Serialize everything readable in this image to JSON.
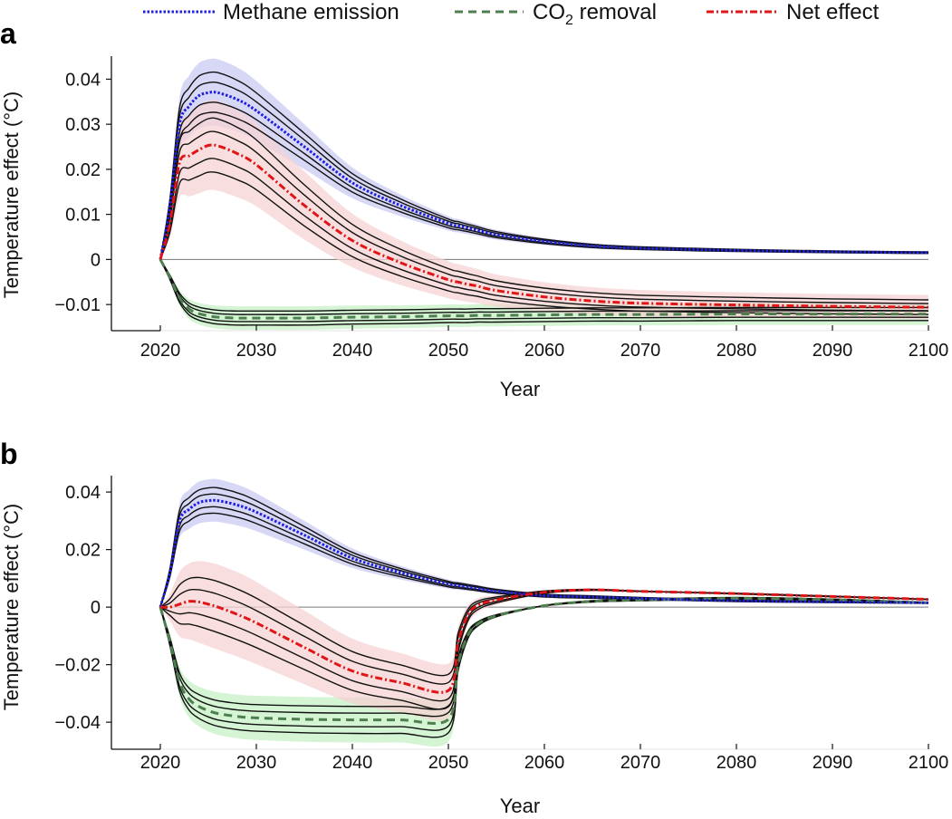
{
  "chart_data": {
    "type": "line",
    "legend": {
      "placement": "top",
      "entries": [
        {
          "key": "methane",
          "label": "Methane emission",
          "color": "#1f1fe0",
          "style": "dotted"
        },
        {
          "key": "co2",
          "label_main": "CO",
          "label_sub": "2",
          "label_rest": " removal",
          "label": "CO2 removal",
          "color": "#4f7f4f",
          "style": "dashed"
        },
        {
          "key": "net",
          "label": "Net effect",
          "color": "#e01515",
          "style": "dash-dot"
        }
      ]
    },
    "band_colors": {
      "methane": "#c9c9f3",
      "co2": "#c6f0c6",
      "net": "#f6d3d3"
    },
    "ensemble_scale": {
      "lines": [
        0.88,
        0.94,
        1.06,
        1.12
      ],
      "band": [
        0.8,
        1.2
      ]
    },
    "x": [
      2020,
      2021,
      2022,
      2023,
      2024,
      2025,
      2026,
      2028,
      2030,
      2035,
      2040,
      2045,
      2050,
      2051,
      2052,
      2053,
      2055,
      2060,
      2065,
      2070,
      2080,
      2090,
      2100
    ],
    "panels": [
      {
        "label": "a",
        "xlabel": "Year",
        "ylabel": "Temperature effect (°C)",
        "xlim": [
          2015,
          2100
        ],
        "ylim": [
          -0.0158,
          0.0451
        ],
        "xticks": [
          2020,
          2030,
          2040,
          2050,
          2060,
          2070,
          2080,
          2090,
          2100
        ],
        "xtick_labels": [
          "2020",
          "2030",
          "2040",
          "2050",
          "2060",
          "2070",
          "2080",
          "2090",
          "2100"
        ],
        "yticks": [
          0.04,
          0.03,
          0.02,
          0.01,
          0,
          -0.01
        ],
        "ytick_labels": [
          "0.04",
          "0.03",
          "0.02",
          "0.01",
          "0",
          "−0.01"
        ],
        "series": [
          {
            "name": "Methane emission",
            "key": "methane",
            "values": [
              0,
              0.012,
              0.03,
              0.034,
              0.0363,
              0.037,
              0.037,
              0.0355,
              0.033,
              0.025,
              0.017,
              0.012,
              0.008,
              0.0075,
              0.007,
              0.0065,
              0.0055,
              0.004,
              0.003,
              0.0025,
              0.002,
              0.0017,
              0.0015
            ]
          },
          {
            "name": "CO2 removal",
            "key": "co2",
            "values": [
              0,
              -0.004,
              -0.0085,
              -0.011,
              -0.012,
              -0.0125,
              -0.0128,
              -0.013,
              -0.013,
              -0.013,
              -0.0128,
              -0.0127,
              -0.0125,
              -0.0125,
              -0.0125,
              -0.0124,
              -0.0124,
              -0.0123,
              -0.0122,
              -0.0122,
              -0.0121,
              -0.0121,
              -0.0121
            ]
          },
          {
            "name": "Net effect",
            "key": "net",
            "values": [
              0,
              0.008,
              0.0215,
              0.023,
              0.0243,
              0.0253,
              0.0252,
              0.0235,
              0.021,
              0.012,
              0.0042,
              -0.0007,
              -0.0045,
              -0.005,
              -0.0055,
              -0.0059,
              -0.0069,
              -0.0083,
              -0.0092,
              -0.0097,
              -0.0101,
              -0.0104,
              -0.0106
            ]
          }
        ]
      },
      {
        "label": "b",
        "xlabel": "Year",
        "ylabel": "Temperature effect (°C)",
        "xlim": [
          2015,
          2100
        ],
        "ylim": [
          -0.0494,
          0.0457
        ],
        "xticks": [
          2020,
          2030,
          2040,
          2050,
          2060,
          2070,
          2080,
          2090,
          2100
        ],
        "xtick_labels": [
          "2020",
          "2030",
          "2040",
          "2050",
          "2060",
          "2070",
          "2080",
          "2090",
          "2100"
        ],
        "yticks": [
          0.04,
          0.02,
          0,
          -0.02,
          -0.04
        ],
        "ytick_labels": [
          "0.04",
          "0.02",
          "0",
          "−0.02",
          "−0.04"
        ],
        "series": [
          {
            "name": "Methane emission",
            "key": "methane",
            "values": [
              0,
              0.012,
              0.03,
              0.034,
              0.0363,
              0.037,
              0.037,
              0.0355,
              0.033,
              0.025,
              0.017,
              0.012,
              0.008,
              0.0075,
              0.007,
              0.0065,
              0.0055,
              0.004,
              0.0035,
              0.003,
              0.0022,
              0.0018,
              0.0015
            ]
          },
          {
            "name": "CO2 removal",
            "key": "co2",
            "values": [
              0,
              -0.012,
              -0.026,
              -0.032,
              -0.0345,
              -0.036,
              -0.037,
              -0.038,
              -0.0385,
              -0.039,
              -0.0392,
              -0.0392,
              -0.039,
              -0.02,
              -0.01,
              -0.006,
              -0.003,
              0.0005,
              0.002,
              0.0025,
              0.003,
              0.0025,
              0.0015
            ]
          },
          {
            "name": "Net effect",
            "key": "net",
            "values": [
              0,
              0,
              0.001,
              0.002,
              0.0018,
              0.001,
              0,
              -0.0025,
              -0.0055,
              -0.014,
              -0.0222,
              -0.0262,
              -0.029,
              -0.0125,
              -0.003,
              0.0005,
              0.0025,
              0.0052,
              0.006,
              0.0055,
              0.0047,
              0.0037,
              0.0027
            ]
          }
        ]
      }
    ]
  }
}
